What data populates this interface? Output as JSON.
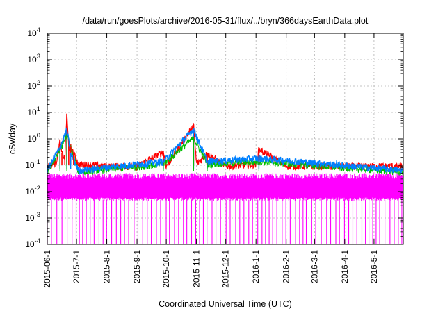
{
  "chart_data": {
    "type": "line",
    "title": "/data/run/goesPlots/archive/2016-05-31/flux/../bryn/366daysEarthData.plot",
    "xlabel": "Coordinated Universal Time (UTC)",
    "ylabel": "cSv/day",
    "yscale": "log",
    "ylim": [
      0.0001,
      10000
    ],
    "xlim": [
      "2015-06-01",
      "2016-05-31"
    ],
    "grid": true,
    "x_ticks": [
      "2015-06-1",
      "2015-7-1",
      "2015-8-1",
      "2015-9-1",
      "2015-10-1",
      "2015-11-1",
      "2015-12-1",
      "2016-1-1",
      "2016-2-1",
      "2016-3-1",
      "2016-4-1",
      "2016-5-1"
    ],
    "y_ticks": [
      {
        "base": "10",
        "exp": "-4",
        "value": 0.0001
      },
      {
        "base": "10",
        "exp": "-3",
        "value": 0.001
      },
      {
        "base": "10",
        "exp": "-2",
        "value": 0.01
      },
      {
        "base": "10",
        "exp": "-1",
        "value": 0.1
      },
      {
        "base": "10",
        "exp": "0",
        "value": 1
      },
      {
        "base": "10",
        "exp": "1",
        "value": 10
      },
      {
        "base": "10",
        "exp": "2",
        "value": 100
      },
      {
        "base": "10",
        "exp": "3",
        "value": 1000
      },
      {
        "base": "10",
        "exp": "4",
        "value": 10000
      }
    ],
    "series": [
      {
        "color": "#ff0000",
        "points": [
          [
            "2015-06-01",
            0.1
          ],
          [
            "2015-06-10",
            0.13
          ],
          [
            "2015-06-14",
            0.9
          ],
          [
            "2015-06-16",
            0.3
          ],
          [
            "2015-06-19",
            0.2
          ],
          [
            "2015-06-21",
            9
          ],
          [
            "2015-06-23",
            0.5
          ],
          [
            "2015-06-25",
            0.5
          ],
          [
            "2015-06-28",
            0.3
          ],
          [
            "2015-07-03",
            0.12
          ],
          [
            "2015-08-01",
            0.1
          ],
          [
            "2015-09-01",
            0.1
          ],
          [
            "2015-09-28",
            0.35
          ],
          [
            "2015-10-01",
            0.1
          ],
          [
            "2015-10-29",
            3.5
          ],
          [
            "2015-11-01",
            0.12
          ],
          [
            "2015-11-12",
            0.3
          ],
          [
            "2015-12-01",
            0.1
          ],
          [
            "2016-01-01",
            0.12
          ],
          [
            "2016-01-04",
            0.45
          ],
          [
            "2016-02-01",
            0.1
          ],
          [
            "2016-03-01",
            0.1
          ],
          [
            "2016-04-01",
            0.1
          ],
          [
            "2016-05-01",
            0.1
          ],
          [
            "2016-05-31",
            0.1
          ]
        ]
      },
      {
        "color": "#00c000",
        "points": [
          [
            "2015-06-01",
            0.06
          ],
          [
            "2015-06-14",
            0.4
          ],
          [
            "2015-06-21",
            1.5
          ],
          [
            "2015-07-03",
            0.06
          ],
          [
            "2015-09-28",
            0.12
          ],
          [
            "2015-10-29",
            1.2
          ],
          [
            "2015-11-12",
            0.12
          ],
          [
            "2016-01-04",
            0.15
          ],
          [
            "2016-05-31",
            0.06
          ]
        ]
      },
      {
        "color": "#0080ff",
        "points": [
          [
            "2015-06-01",
            0.07
          ],
          [
            "2015-06-14",
            0.5
          ],
          [
            "2015-06-21",
            2.5
          ],
          [
            "2015-06-25",
            0.3
          ],
          [
            "2015-07-03",
            0.07
          ],
          [
            "2015-09-28",
            0.15
          ],
          [
            "2015-10-29",
            2.5
          ],
          [
            "2015-11-12",
            0.15
          ],
          [
            "2016-01-04",
            0.2
          ],
          [
            "2016-05-31",
            0.07
          ]
        ]
      },
      {
        "color": "#ff00ff",
        "points": [
          [
            "2015-06-01",
            0.04
          ],
          [
            "2015-06-01",
            0.005
          ],
          [
            "2016-05-31",
            0.04
          ],
          [
            "2016-05-31",
            0.005
          ]
        ],
        "dropouts_to": 0.0001
      }
    ]
  }
}
